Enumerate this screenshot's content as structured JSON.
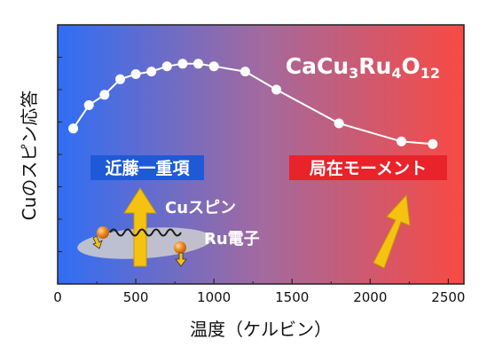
{
  "chart_data": {
    "type": "line",
    "title": "",
    "compound": {
      "base": "CaCu",
      "sub1": "3",
      "mid": "Ru",
      "sub2": "4",
      "mid2": "O",
      "sub3": "12"
    },
    "xlabel": "温度（ケルビン）",
    "ylabel": "Cuのスピン応答",
    "xlim": [
      0,
      2600
    ],
    "xticks": [
      0,
      500,
      1000,
      1500,
      2000,
      2500
    ],
    "xtick_labels": [
      "0",
      "500",
      "1000",
      "1500",
      "2000",
      "2500"
    ],
    "y_tick_labels_shown": false,
    "ylim": [
      0,
      1
    ],
    "series": [
      {
        "x": [
          100,
          200,
          300,
          400,
          500,
          600,
          700,
          800,
          900,
          1000,
          1200,
          1400,
          1800,
          2200,
          2400
        ],
        "y": [
          0.6,
          0.69,
          0.73,
          0.79,
          0.81,
          0.82,
          0.84,
          0.85,
          0.85,
          0.84,
          0.82,
          0.75,
          0.62,
          0.55,
          0.54
        ]
      }
    ],
    "background_gradient": {
      "left": "#2f6ef5",
      "middle": "#a26a9f",
      "right": "#f84a43"
    },
    "marker_color": "#ffffff",
    "line_color": "#ffffff",
    "annotations": {
      "kondo": "近藤一重項",
      "local_moment": "局在モーメント",
      "cu_spin": "Cuスピン",
      "ru_electron": "Ru電子"
    },
    "colors": {
      "kondo_box": "#1e5ad8",
      "moment_box": "#e8232a",
      "arrow": "#f5c211",
      "electron": "#f08a1e",
      "cloud": "#c9c9cf"
    }
  }
}
